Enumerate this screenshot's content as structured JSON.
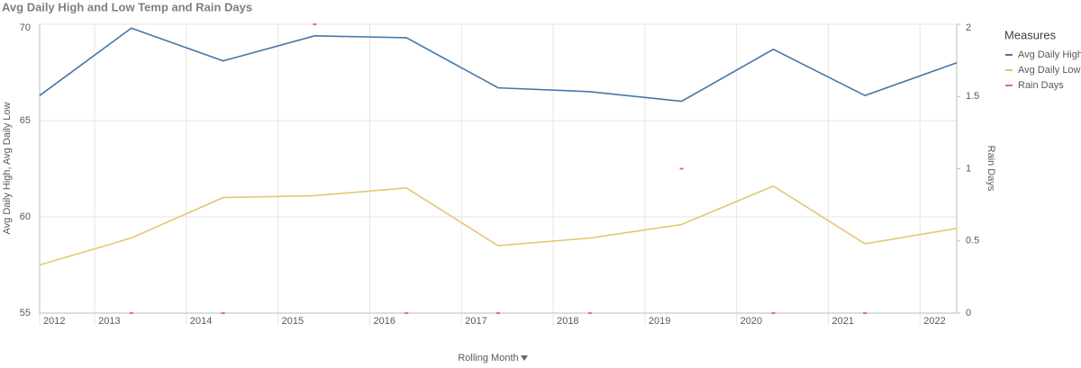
{
  "chart_data": {
    "type": "line",
    "title": "Avg Daily High and Low Temp and Rain Days",
    "x_label": "Rolling Month",
    "y_label": "Avg Daily High, Avg Daily Low",
    "y2_label": "Rain Days",
    "legend_title": "Measures",
    "legend": "right",
    "grid": true,
    "x": [
      2012.4,
      2013.4,
      2014.4,
      2015.4,
      2016.4,
      2017.4,
      2018.4,
      2019.4,
      2020.4,
      2021.4,
      2022.4
    ],
    "xlim": [
      2012.4,
      2022.4
    ],
    "xticks": [
      {
        "value": 2012.4,
        "label": "2012"
      },
      2013,
      2014,
      2015,
      2016,
      2017,
      2018,
      2019,
      2020,
      2021,
      2022
    ],
    "ylim": [
      55,
      70
    ],
    "yticks": [
      55,
      60,
      65,
      70
    ],
    "y2lim": [
      0,
      2
    ],
    "y2ticks": [
      0,
      0.5,
      1,
      1.5,
      2
    ],
    "series": [
      {
        "name": "Avg Daily High",
        "color": "#4477aa",
        "values": [
          66.3,
          69.8,
          68.1,
          69.4,
          69.3,
          66.7,
          66.5,
          66.0,
          68.7,
          66.3,
          68.0
        ]
      },
      {
        "name": "Avg Daily Low",
        "color": "#e3c770",
        "values": [
          57.5,
          58.9,
          61.0,
          61.1,
          61.5,
          58.5,
          58.9,
          59.6,
          61.6,
          58.6,
          59.4
        ]
      },
      {
        "name": "Rain Days",
        "color": "#e36a8a",
        "axis": "y2",
        "marker": "dash",
        "values": [
          null,
          0,
          0,
          2,
          0,
          0,
          0,
          1,
          0,
          0,
          null
        ]
      }
    ]
  }
}
